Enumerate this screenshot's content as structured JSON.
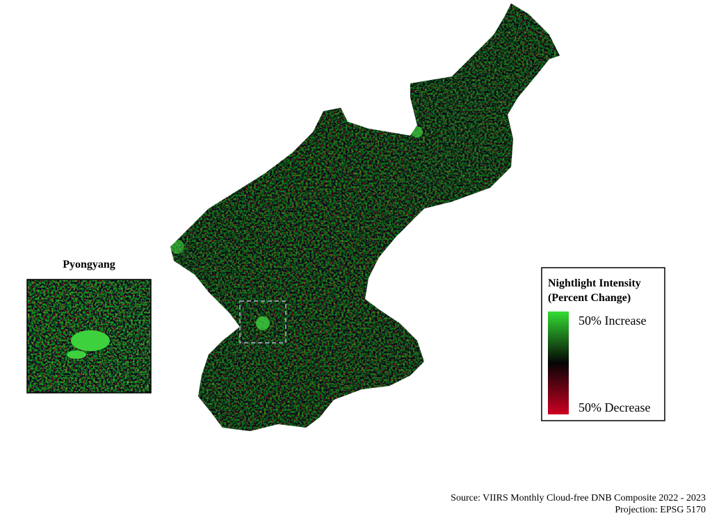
{
  "inset": {
    "title": "Pyongyang"
  },
  "legend": {
    "title_line1": "Nightlight Intensity",
    "title_line2": "(Percent Change)",
    "top_label": "50% Increase",
    "bottom_label": "50% Decrease"
  },
  "footer": {
    "source": "Source: VIIRS Monthly Cloud-free DNB Composite 2022 - 2023",
    "projection": "Projection: EPSG 5170"
  }
}
